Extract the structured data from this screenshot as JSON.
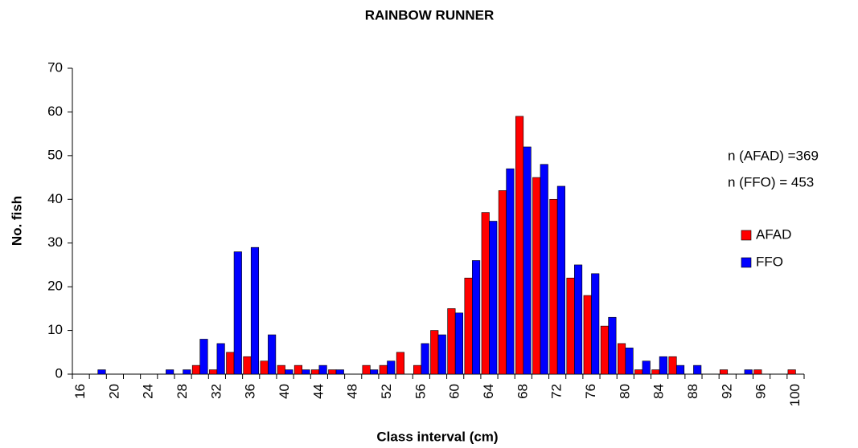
{
  "chart_data": {
    "type": "bar",
    "title": "RAINBOW RUNNER",
    "x_label": "Class interval (cm)",
    "y_label": "No. fish",
    "annotations": [
      "n (AFAD) =369",
      "n (FFO) = 453"
    ],
    "categories": [
      "16",
      null,
      "20",
      null,
      "24",
      null,
      "28",
      null,
      "32",
      null,
      "36",
      null,
      "40",
      null,
      "44",
      null,
      "48",
      null,
      "52",
      null,
      "56",
      null,
      "60",
      null,
      "64",
      null,
      "68",
      null,
      "72",
      null,
      "76",
      null,
      "80",
      null,
      "84",
      null,
      "88",
      null,
      "92",
      null,
      "96",
      null,
      "100"
    ],
    "series": [
      {
        "name": "AFAD",
        "color": "#ff0000",
        "values": [
          0,
          0,
          0,
          0,
          0,
          0,
          0,
          2,
          1,
          5,
          4,
          3,
          2,
          2,
          1,
          1,
          0,
          2,
          2,
          5,
          2,
          10,
          15,
          22,
          37,
          42,
          59,
          45,
          40,
          22,
          18,
          11,
          7,
          1,
          1,
          4,
          0,
          0,
          1,
          0,
          1,
          0,
          1
        ]
      },
      {
        "name": "FFO",
        "color": "#0000ff",
        "values": [
          0,
          1,
          0,
          0,
          0,
          1,
          1,
          8,
          7,
          28,
          29,
          9,
          1,
          1,
          2,
          1,
          0,
          1,
          3,
          0,
          7,
          9,
          14,
          26,
          35,
          47,
          52,
          48,
          43,
          25,
          23,
          13,
          6,
          3,
          4,
          2,
          2,
          0,
          0,
          1,
          0,
          0,
          0
        ]
      }
    ],
    "ylim": [
      0,
      70
    ],
    "yticks": [
      0,
      10,
      20,
      30,
      40,
      50,
      60,
      70
    ],
    "grid": false
  }
}
